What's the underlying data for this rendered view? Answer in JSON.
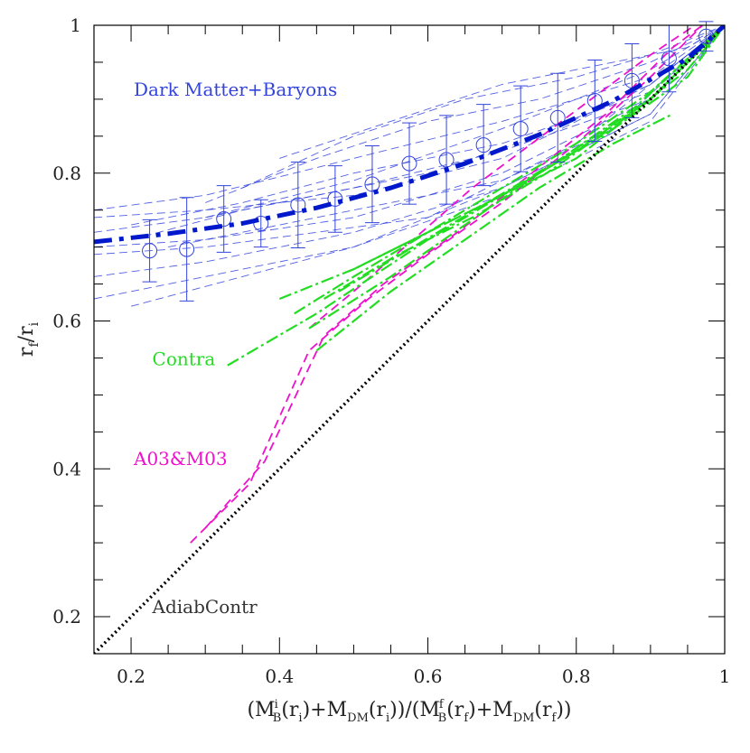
{
  "chart_data": {
    "type": "line",
    "xlim": [
      0.15,
      1.0
    ],
    "ylim": [
      0.15,
      1.0
    ],
    "grid": false,
    "xlabel": "(M_B^i(r_i)+M_DM(r_i))/(M_B^f(r_f)+M_DM(r_f))",
    "ylabel": "r_f/r_i",
    "xlabel_parts": {
      "open": "(M",
      "sub1": "B",
      "sup1": "i",
      "mid1": "(r",
      "sub2": "i",
      "mid2": ")+M",
      "sub3": "DM",
      "mid3": "(r",
      "sub4": "i",
      "mid4": "))/(M",
      "sub5": "B",
      "sup5": "f",
      "mid5": "(r",
      "sub6": "f",
      "mid6": ")+M",
      "sub7": "DM",
      "mid7": "(r",
      "sub8": "f",
      "close": "))"
    },
    "ylabel_parts": {
      "a": "r",
      "a_sub": "f",
      "slash": "/r",
      "b_sub": "i"
    },
    "x_ticks": [
      "0.2",
      "0.4",
      "0.6",
      "0.8",
      "1"
    ],
    "y_ticks": [
      "0.2",
      "0.4",
      "0.6",
      "0.8",
      "1"
    ],
    "x_tick_values": [
      0.2,
      0.4,
      0.6,
      0.8,
      1.0
    ],
    "y_tick_values": [
      0.2,
      0.4,
      0.6,
      0.8,
      1.0
    ],
    "annotations": [
      {
        "text": "Dark Matter+Baryons",
        "x": 0.15,
        "y": 0.905,
        "color": "#3344dd"
      },
      {
        "text": "Contra",
        "x": 0.175,
        "y": 0.54,
        "color": "#22dd22"
      },
      {
        "text": "A03&M03",
        "x": 0.15,
        "y": 0.405,
        "color": "#ee11cc"
      },
      {
        "text": "AdiabContr",
        "x": 0.175,
        "y": 0.205,
        "color": "#333333"
      }
    ],
    "series": [
      {
        "kind": "mean_fit",
        "color": "#0018cc",
        "x": [
          0.15,
          0.25,
          0.35,
          0.45,
          0.55,
          0.65,
          0.75,
          0.85,
          0.95,
          1.0
        ],
        "y": [
          0.707,
          0.718,
          0.732,
          0.753,
          0.78,
          0.813,
          0.852,
          0.898,
          0.955,
          1.0
        ]
      },
      {
        "kind": "binned_points_with_errors",
        "color": "#3344dd",
        "x": [
          0.225,
          0.275,
          0.325,
          0.375,
          0.425,
          0.475,
          0.525,
          0.575,
          0.625,
          0.675,
          0.725,
          0.775,
          0.825,
          0.875,
          0.925,
          0.975
        ],
        "y": [
          0.695,
          0.697,
          0.738,
          0.732,
          0.757,
          0.765,
          0.785,
          0.813,
          0.818,
          0.838,
          0.86,
          0.875,
          0.898,
          0.925,
          0.955,
          0.985
        ],
        "err": [
          0.042,
          0.07,
          0.045,
          0.032,
          0.058,
          0.045,
          0.052,
          0.055,
          0.06,
          0.055,
          0.058,
          0.06,
          0.055,
          0.05,
          0.045,
          0.02
        ]
      },
      {
        "kind": "simulation_halos",
        "color": "#3344dd",
        "lines": [
          {
            "x": [
              0.15,
              0.3,
              0.5,
              0.7,
              0.9,
              1.0
            ],
            "y": [
              0.74,
              0.75,
              0.77,
              0.82,
              0.92,
              1.0
            ]
          },
          {
            "x": [
              0.15,
              0.3,
              0.5,
              0.7,
              0.9,
              1.0
            ],
            "y": [
              0.7,
              0.71,
              0.74,
              0.8,
              0.9,
              1.0
            ]
          },
          {
            "x": [
              0.15,
              0.3,
              0.5,
              0.7,
              0.9,
              1.0
            ],
            "y": [
              0.66,
              0.68,
              0.72,
              0.78,
              0.88,
              1.0
            ]
          },
          {
            "x": [
              0.15,
              0.3,
              0.5,
              0.7,
              0.9,
              1.0
            ],
            "y": [
              0.63,
              0.66,
              0.7,
              0.78,
              0.88,
              1.0
            ]
          },
          {
            "x": [
              0.2,
              0.35,
              0.5,
              0.7,
              0.9,
              1.0
            ],
            "y": [
              0.62,
              0.66,
              0.7,
              0.77,
              0.87,
              1.0
            ]
          },
          {
            "x": [
              0.15,
              0.3,
              0.5,
              0.7,
              0.9,
              1.0
            ],
            "y": [
              0.75,
              0.77,
              0.82,
              0.87,
              0.93,
              1.0
            ]
          },
          {
            "x": [
              0.15,
              0.3,
              0.5,
              0.7,
              0.9,
              1.0
            ],
            "y": [
              0.72,
              0.74,
              0.79,
              0.86,
              0.94,
              1.0
            ]
          },
          {
            "x": [
              0.2,
              0.35,
              0.5,
              0.7,
              0.9,
              1.0
            ],
            "y": [
              0.73,
              0.76,
              0.8,
              0.84,
              0.91,
              1.0
            ]
          },
          {
            "x": [
              0.3,
              0.45,
              0.6,
              0.75,
              0.9,
              1.0
            ],
            "y": [
              0.76,
              0.82,
              0.87,
              0.9,
              0.95,
              1.0
            ]
          },
          {
            "x": [
              0.35,
              0.5,
              0.65,
              0.8,
              0.9,
              1.0
            ],
            "y": [
              0.78,
              0.85,
              0.9,
              0.93,
              0.96,
              1.0
            ]
          },
          {
            "x": [
              0.2,
              0.35,
              0.5,
              0.7,
              0.9,
              1.0
            ],
            "y": [
              0.71,
              0.75,
              0.78,
              0.83,
              0.9,
              1.0
            ]
          },
          {
            "x": [
              0.25,
              0.4,
              0.55,
              0.7,
              0.85,
              1.0
            ],
            "y": [
              0.7,
              0.73,
              0.76,
              0.79,
              0.86,
              1.0
            ]
          },
          {
            "x": [
              0.4,
              0.55,
              0.7,
              0.85,
              0.95,
              1.0
            ],
            "y": [
              0.82,
              0.87,
              0.92,
              0.95,
              0.97,
              1.0
            ]
          },
          {
            "x": [
              0.15,
              0.3,
              0.45,
              0.6,
              0.8,
              1.0
            ],
            "y": [
              0.69,
              0.7,
              0.72,
              0.74,
              0.84,
              1.0
            ]
          },
          {
            "x": [
              0.3,
              0.45,
              0.6,
              0.75,
              0.9,
              1.0
            ],
            "y": [
              0.74,
              0.77,
              0.8,
              0.85,
              0.92,
              1.0
            ]
          }
        ]
      },
      {
        "kind": "A03&M03",
        "color": "#ee11cc",
        "lines": [
          {
            "x": [
              0.28,
              0.36,
              0.44,
              0.52,
              0.6,
              0.7,
              0.8,
              0.9,
              0.97
            ],
            "y": [
              0.3,
              0.38,
              0.56,
              0.63,
              0.69,
              0.76,
              0.84,
              0.93,
              1.0
            ]
          },
          {
            "x": [
              0.3,
              0.38,
              0.46,
              0.54,
              0.64,
              0.74,
              0.84,
              0.93,
              0.97
            ],
            "y": [
              0.32,
              0.41,
              0.58,
              0.65,
              0.72,
              0.8,
              0.88,
              0.97,
              1.0
            ]
          },
          {
            "x": [
              0.44,
              0.5,
              0.58,
              0.66,
              0.74,
              0.82,
              0.9,
              0.96
            ],
            "y": [
              0.59,
              0.64,
              0.71,
              0.78,
              0.84,
              0.9,
              0.96,
              1.0
            ]
          }
        ]
      },
      {
        "kind": "Contra",
        "color": "#22dd22",
        "lines": [
          {
            "x": [
              0.33,
              0.45,
              0.6,
              0.75,
              0.9,
              1.0
            ],
            "y": [
              0.54,
              0.61,
              0.71,
              0.8,
              0.9,
              1.0
            ]
          },
          {
            "x": [
              0.4,
              0.5,
              0.6,
              0.7,
              0.8,
              0.9,
              1.0
            ],
            "y": [
              0.63,
              0.67,
              0.72,
              0.77,
              0.83,
              0.9,
              1.0
            ]
          },
          {
            "x": [
              0.42,
              0.5,
              0.6,
              0.7,
              0.8,
              0.9,
              1.0
            ],
            "y": [
              0.61,
              0.66,
              0.72,
              0.77,
              0.82,
              0.9,
              1.0
            ]
          },
          {
            "x": [
              0.44,
              0.55,
              0.65,
              0.75,
              0.85,
              0.95,
              1.0
            ],
            "y": [
              0.59,
              0.66,
              0.73,
              0.8,
              0.86,
              0.93,
              1.0
            ]
          },
          {
            "x": [
              0.45,
              0.55,
              0.65,
              0.75,
              0.85,
              0.93
            ],
            "y": [
              0.56,
              0.64,
              0.71,
              0.78,
              0.84,
              0.88
            ]
          },
          {
            "x": [
              0.46,
              0.56,
              0.66,
              0.76,
              0.86,
              0.95,
              1.0
            ],
            "y": [
              0.63,
              0.69,
              0.74,
              0.8,
              0.87,
              0.94,
              1.0
            ]
          },
          {
            "x": [
              0.5,
              0.6,
              0.7,
              0.8,
              0.9,
              1.0
            ],
            "y": [
              0.67,
              0.72,
              0.78,
              0.84,
              0.91,
              1.0
            ]
          },
          {
            "x": [
              0.48,
              0.58,
              0.68,
              0.78,
              0.88,
              1.0
            ],
            "y": [
              0.64,
              0.7,
              0.76,
              0.82,
              0.89,
              1.0
            ]
          }
        ]
      },
      {
        "kind": "AdiabContr",
        "color": "#000000",
        "x": [
          0.15,
          1.0
        ],
        "y": [
          0.15,
          1.0
        ]
      }
    ]
  }
}
